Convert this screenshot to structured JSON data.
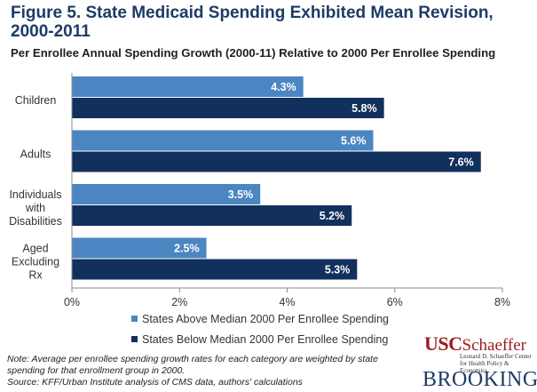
{
  "title": "Figure 5. State Medicaid Spending Exhibited Mean Revision, 2000-2011",
  "subtitle": "Per Enrollee Annual Spending Growth (2000-11) Relative to 2000 Per Enrollee Spending",
  "chart_data": {
    "type": "bar",
    "orientation": "horizontal",
    "categories": [
      [
        "Children"
      ],
      [
        "Adults"
      ],
      [
        "Individuals",
        "with",
        "Disabilities"
      ],
      [
        "Aged",
        "Excluding",
        "Rx"
      ]
    ],
    "series": [
      {
        "name": "States Above Median 2000 Per Enrollee Spending",
        "color": "#4b86c3",
        "values": [
          4.3,
          5.6,
          3.5,
          2.5
        ],
        "labels": [
          "4.3%",
          "5.6%",
          "3.5%",
          "2.5%"
        ]
      },
      {
        "name": "States Below Median 2000 Per Enrollee Spending",
        "color": "#12305c",
        "values": [
          5.8,
          7.6,
          5.2,
          5.3
        ],
        "labels": [
          "5.8%",
          "7.6%",
          "5.2%",
          "5.3%"
        ]
      }
    ],
    "xlim": [
      0,
      8
    ],
    "xticks": [
      0,
      2,
      4,
      6,
      8
    ],
    "xtick_labels": [
      "0%",
      "2%",
      "4%",
      "6%",
      "8%"
    ],
    "legend_position": "bottom",
    "grid": false
  },
  "note": "Note: Average per enrollee spending growth rates for each category are weighted by state spending for that enrollment group in 2000.",
  "source": "Source: KFF/Urban Institute analysis of CMS data, authors' calculations",
  "logos": {
    "usc": "USC",
    "schaeffer": "Schaeffer",
    "schaeffer_sub_1": "Leonard D. Schaeffer Center",
    "schaeffer_sub_2": "for Health Policy & Economics",
    "brookings": "BROOKINGS"
  }
}
